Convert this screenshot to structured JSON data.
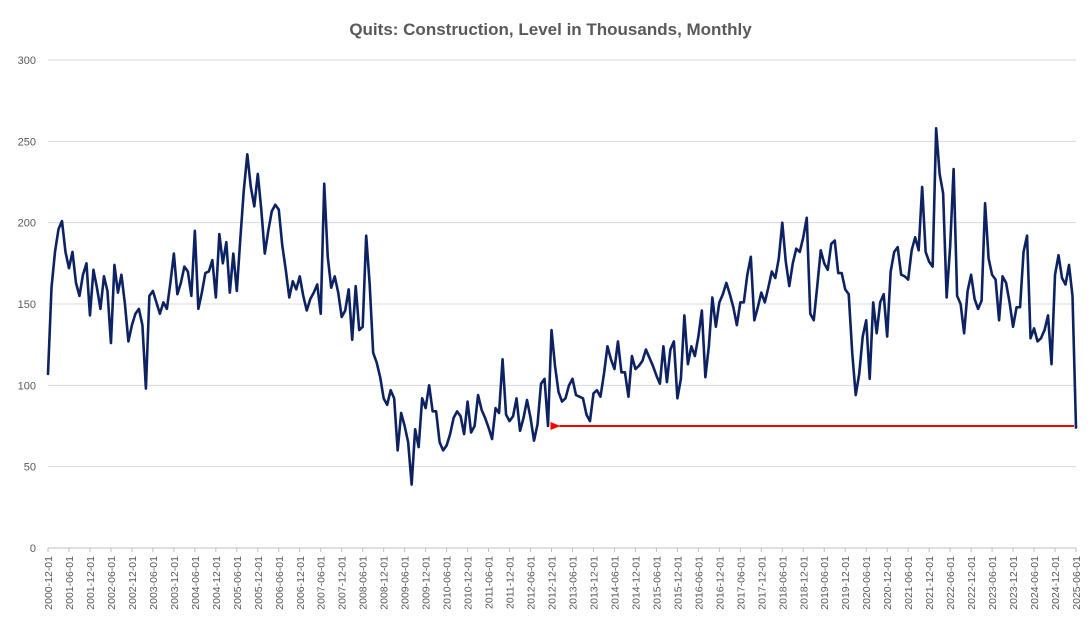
{
  "chart_data": {
    "type": "line",
    "title": "Quits: Construction, Level in Thousands, Monthly",
    "xlabel": "",
    "ylabel": "",
    "ylim": [
      0,
      300
    ],
    "yticks": [
      "0",
      "50",
      "100",
      "150",
      "200",
      "250",
      "300"
    ],
    "grid": true,
    "legend": "none",
    "x_start": "2000-12-01",
    "x_end": "2025-06-01",
    "x_tick_labels": [
      "2000-12-01",
      "2001-06-01",
      "2001-12-01",
      "2002-06-01",
      "2002-12-01",
      "2003-06-01",
      "2003-12-01",
      "2004-06-01",
      "2004-12-01",
      "2005-06-01",
      "2005-12-01",
      "2006-06-01",
      "2006-12-01",
      "2007-06-01",
      "2007-12-01",
      "2008-06-01",
      "2008-12-01",
      "2009-06-01",
      "2009-12-01",
      "2010-06-01",
      "2010-12-01",
      "2011-06-01",
      "2011-12-01",
      "2012-06-01",
      "2012-12-01",
      "2013-06-01",
      "2013-12-01",
      "2014-06-01",
      "2014-12-01",
      "2015-06-01",
      "2015-12-01",
      "2016-06-01",
      "2016-12-01",
      "2017-06-01",
      "2017-12-01",
      "2018-06-01",
      "2018-12-01",
      "2019-06-01",
      "2019-12-01",
      "2020-06-01",
      "2020-12-01",
      "2021-06-01",
      "2021-12-01",
      "2022-06-01",
      "2022-12-01",
      "2023-06-01",
      "2023-12-01",
      "2024-06-01",
      "2024-12-01",
      "2025-06-01"
    ],
    "series": [
      {
        "color": "#0d2263",
        "values": [
          [
            0,
            107
          ],
          [
            1,
            160
          ],
          [
            2,
            182
          ],
          [
            3,
            196
          ],
          [
            4,
            201
          ],
          [
            5,
            182
          ],
          [
            6,
            172
          ],
          [
            7,
            182
          ],
          [
            8,
            163
          ],
          [
            9,
            155
          ],
          [
            10,
            168
          ],
          [
            11,
            175
          ],
          [
            12,
            143
          ],
          [
            13,
            171
          ],
          [
            14,
            160
          ],
          [
            15,
            147
          ],
          [
            16,
            167
          ],
          [
            17,
            158
          ],
          [
            18,
            126
          ],
          [
            19,
            174
          ],
          [
            20,
            157
          ],
          [
            21,
            168
          ],
          [
            22,
            150
          ],
          [
            23,
            127
          ],
          [
            24,
            137
          ],
          [
            25,
            144
          ],
          [
            26,
            147
          ],
          [
            27,
            137
          ],
          [
            28,
            98
          ],
          [
            29,
            155
          ],
          [
            30,
            158
          ],
          [
            31,
            151
          ],
          [
            32,
            144
          ],
          [
            33,
            151
          ],
          [
            34,
            147
          ],
          [
            35,
            163
          ],
          [
            36,
            181
          ],
          [
            37,
            156
          ],
          [
            38,
            163
          ],
          [
            39,
            173
          ],
          [
            40,
            170
          ],
          [
            41,
            155
          ],
          [
            42,
            195
          ],
          [
            43,
            147
          ],
          [
            44,
            157
          ],
          [
            45,
            169
          ],
          [
            46,
            170
          ],
          [
            47,
            177
          ],
          [
            48,
            154
          ],
          [
            49,
            193
          ],
          [
            50,
            175
          ],
          [
            51,
            188
          ],
          [
            52,
            157
          ],
          [
            53,
            181
          ],
          [
            54,
            158
          ],
          [
            55,
            190
          ],
          [
            56,
            220
          ],
          [
            57,
            242
          ],
          [
            58,
            222
          ],
          [
            59,
            210
          ],
          [
            60,
            230
          ],
          [
            61,
            208
          ],
          [
            62,
            181
          ],
          [
            63,
            195
          ],
          [
            64,
            207
          ],
          [
            65,
            211
          ],
          [
            66,
            208
          ],
          [
            67,
            186
          ],
          [
            68,
            171
          ],
          [
            69,
            154
          ],
          [
            70,
            164
          ],
          [
            71,
            159
          ],
          [
            72,
            167
          ],
          [
            73,
            155
          ],
          [
            74,
            146
          ],
          [
            75,
            153
          ],
          [
            76,
            157
          ],
          [
            77,
            162
          ],
          [
            78,
            144
          ],
          [
            79,
            224
          ],
          [
            80,
            179
          ],
          [
            81,
            160
          ],
          [
            82,
            167
          ],
          [
            83,
            157
          ],
          [
            84,
            142
          ],
          [
            85,
            146
          ],
          [
            86,
            159
          ],
          [
            87,
            128
          ],
          [
            88,
            161
          ],
          [
            89,
            134
          ],
          [
            90,
            136
          ],
          [
            91,
            192
          ],
          [
            92,
            162
          ],
          [
            93,
            120
          ],
          [
            94,
            114
          ],
          [
            95,
            105
          ],
          [
            96,
            92
          ],
          [
            97,
            88
          ],
          [
            98,
            97
          ],
          [
            99,
            92
          ],
          [
            100,
            60
          ],
          [
            101,
            83
          ],
          [
            102,
            75
          ],
          [
            103,
            65
          ],
          [
            104,
            39
          ],
          [
            105,
            73
          ],
          [
            106,
            62
          ],
          [
            107,
            92
          ],
          [
            108,
            86
          ],
          [
            109,
            100
          ],
          [
            110,
            84
          ],
          [
            111,
            84
          ],
          [
            112,
            65
          ],
          [
            113,
            60
          ],
          [
            114,
            63
          ],
          [
            115,
            70
          ],
          [
            116,
            80
          ],
          [
            117,
            84
          ],
          [
            118,
            81
          ],
          [
            119,
            70
          ],
          [
            120,
            90
          ],
          [
            121,
            71
          ],
          [
            122,
            75
          ],
          [
            123,
            94
          ],
          [
            124,
            85
          ],
          [
            125,
            80
          ],
          [
            126,
            74
          ],
          [
            127,
            67
          ],
          [
            128,
            86
          ],
          [
            129,
            83
          ],
          [
            130,
            116
          ],
          [
            131,
            82
          ],
          [
            132,
            78
          ],
          [
            133,
            81
          ],
          [
            134,
            92
          ],
          [
            135,
            72
          ],
          [
            136,
            80
          ],
          [
            137,
            91
          ],
          [
            138,
            80
          ],
          [
            139,
            66
          ],
          [
            140,
            76
          ],
          [
            141,
            101
          ],
          [
            142,
            104
          ],
          [
            143,
            75
          ],
          [
            144,
            134
          ],
          [
            145,
            112
          ],
          [
            146,
            96
          ],
          [
            147,
            90
          ],
          [
            148,
            92
          ],
          [
            149,
            100
          ],
          [
            150,
            104
          ],
          [
            151,
            94
          ],
          [
            152,
            93
          ],
          [
            153,
            92
          ],
          [
            154,
            82
          ],
          [
            155,
            78
          ],
          [
            156,
            95
          ],
          [
            157,
            97
          ],
          [
            158,
            93
          ],
          [
            159,
            107
          ],
          [
            160,
            124
          ],
          [
            161,
            116
          ],
          [
            162,
            110
          ],
          [
            163,
            127
          ],
          [
            164,
            108
          ],
          [
            165,
            108
          ],
          [
            166,
            93
          ],
          [
            167,
            118
          ],
          [
            168,
            110
          ],
          [
            169,
            112
          ],
          [
            170,
            115
          ],
          [
            171,
            122
          ],
          [
            172,
            117
          ],
          [
            173,
            112
          ],
          [
            174,
            106
          ],
          [
            175,
            101
          ],
          [
            176,
            124
          ],
          [
            177,
            102
          ],
          [
            178,
            122
          ],
          [
            179,
            127
          ],
          [
            180,
            92
          ],
          [
            181,
            104
          ],
          [
            182,
            143
          ],
          [
            183,
            113
          ],
          [
            184,
            124
          ],
          [
            185,
            118
          ],
          [
            186,
            130
          ],
          [
            187,
            146
          ],
          [
            188,
            105
          ],
          [
            189,
            124
          ],
          [
            190,
            154
          ],
          [
            191,
            136
          ],
          [
            192,
            151
          ],
          [
            193,
            156
          ],
          [
            194,
            163
          ],
          [
            195,
            156
          ],
          [
            196,
            148
          ],
          [
            197,
            137
          ],
          [
            198,
            151
          ],
          [
            199,
            151
          ],
          [
            200,
            168
          ],
          [
            201,
            179
          ],
          [
            202,
            140
          ],
          [
            203,
            148
          ],
          [
            204,
            157
          ],
          [
            205,
            151
          ],
          [
            206,
            160
          ],
          [
            207,
            170
          ],
          [
            208,
            166
          ],
          [
            209,
            178
          ],
          [
            210,
            200
          ],
          [
            211,
            176
          ],
          [
            212,
            161
          ],
          [
            213,
            175
          ],
          [
            214,
            184
          ],
          [
            215,
            182
          ],
          [
            216,
            191
          ],
          [
            217,
            203
          ],
          [
            218,
            144
          ],
          [
            219,
            140
          ],
          [
            220,
            161
          ],
          [
            221,
            183
          ],
          [
            222,
            175
          ],
          [
            223,
            171
          ],
          [
            224,
            187
          ],
          [
            225,
            189
          ],
          [
            226,
            169
          ],
          [
            227,
            169
          ],
          [
            228,
            159
          ],
          [
            229,
            156
          ],
          [
            230,
            120
          ],
          [
            231,
            94
          ],
          [
            232,
            107
          ],
          [
            233,
            130
          ],
          [
            234,
            140
          ],
          [
            235,
            104
          ],
          [
            236,
            151
          ],
          [
            237,
            132
          ],
          [
            238,
            151
          ],
          [
            239,
            156
          ],
          [
            240,
            130
          ],
          [
            241,
            170
          ],
          [
            242,
            182
          ],
          [
            243,
            185
          ],
          [
            244,
            168
          ],
          [
            245,
            167
          ],
          [
            246,
            165
          ],
          [
            247,
            183
          ],
          [
            248,
            191
          ],
          [
            249,
            183
          ],
          [
            250,
            222
          ],
          [
            251,
            182
          ],
          [
            252,
            176
          ],
          [
            253,
            173
          ],
          [
            254,
            258
          ],
          [
            255,
            230
          ],
          [
            256,
            218
          ],
          [
            257,
            154
          ],
          [
            258,
            185
          ],
          [
            259,
            233
          ],
          [
            260,
            155
          ],
          [
            261,
            150
          ],
          [
            262,
            132
          ],
          [
            263,
            158
          ],
          [
            264,
            168
          ],
          [
            265,
            153
          ],
          [
            266,
            147
          ],
          [
            267,
            152
          ],
          [
            268,
            212
          ],
          [
            269,
            178
          ],
          [
            270,
            168
          ],
          [
            271,
            165
          ],
          [
            272,
            140
          ],
          [
            273,
            167
          ],
          [
            274,
            163
          ],
          [
            275,
            151
          ],
          [
            276,
            136
          ],
          [
            277,
            148
          ],
          [
            278,
            148
          ],
          [
            279,
            182
          ],
          [
            280,
            192
          ],
          [
            281,
            129
          ],
          [
            282,
            135
          ],
          [
            283,
            127
          ],
          [
            284,
            129
          ],
          [
            285,
            134
          ],
          [
            286,
            143
          ],
          [
            287,
            113
          ],
          [
            288,
            168
          ],
          [
            289,
            180
          ],
          [
            290,
            166
          ],
          [
            291,
            162
          ],
          [
            292,
            174
          ],
          [
            293,
            155
          ],
          [
            294,
            74
          ]
        ]
      }
    ],
    "annotation": {
      "type": "arrow",
      "color": "#ff0000",
      "y": 75,
      "from_x": 294,
      "to_x": 144
    }
  }
}
